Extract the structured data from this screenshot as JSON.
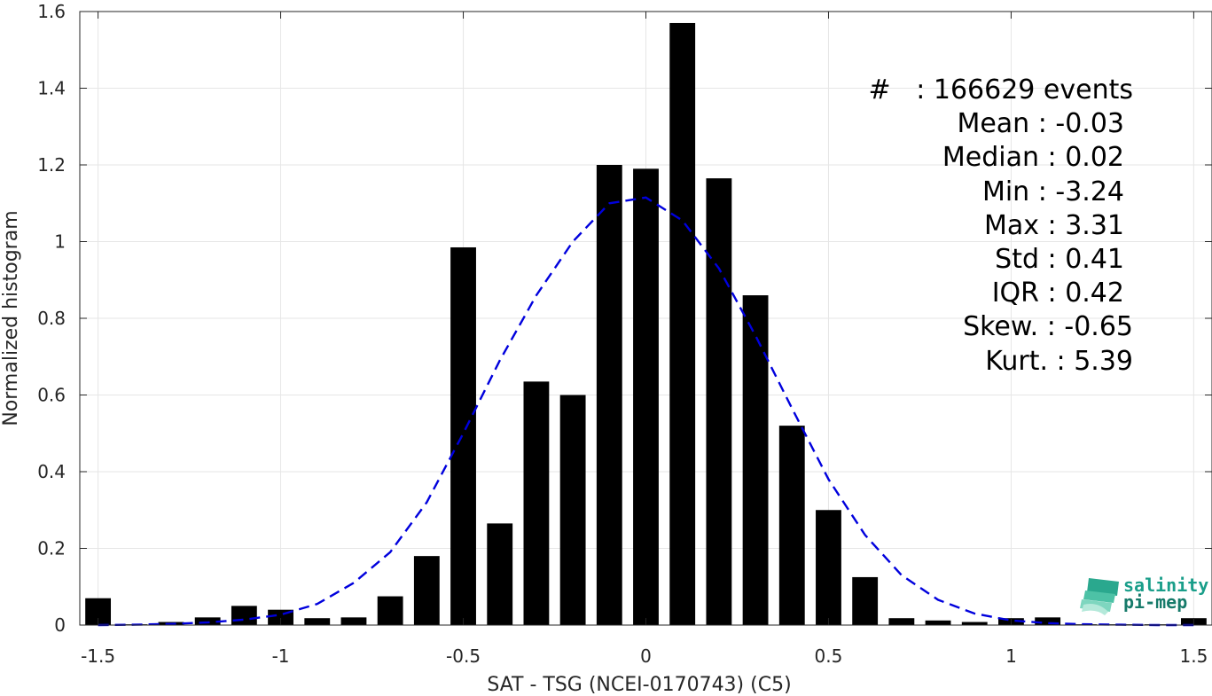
{
  "chart_data": {
    "type": "bar",
    "xlabel": "SAT - TSG (NCEI-0170743) (C5)",
    "ylabel": "Normalized histogram",
    "xlim": [
      -1.55,
      1.55
    ],
    "ylim": [
      0,
      1.6
    ],
    "grid": true,
    "x_ticks": [
      -1.5,
      -1,
      -0.5,
      0,
      0.5,
      1,
      1.5
    ],
    "x_tick_labels": [
      "-1.5",
      "-1",
      "-0.5",
      "0",
      "0.5",
      "1",
      "1.5"
    ],
    "y_ticks": [
      0,
      0.2,
      0.4,
      0.6,
      0.8,
      1,
      1.2,
      1.4,
      1.6
    ],
    "y_tick_labels": [
      "0",
      "0.2",
      "0.4",
      "0.6",
      "0.8",
      "1",
      "1.2",
      "1.4",
      "1.6"
    ],
    "bar_width": 0.07,
    "bar_color": "#000000",
    "bars": {
      "x": [
        -1.5,
        -1.4,
        -1.3,
        -1.2,
        -1.1,
        -1.0,
        -0.9,
        -0.8,
        -0.7,
        -0.6,
        -0.5,
        -0.4,
        -0.3,
        -0.2,
        -0.1,
        0.0,
        0.1,
        0.2,
        0.3,
        0.4,
        0.5,
        0.6,
        0.7,
        0.8,
        0.9,
        1.0,
        1.1,
        1.2,
        1.3,
        1.4,
        1.5
      ],
      "values": [
        0.07,
        0.002,
        0.008,
        0.02,
        0.05,
        0.04,
        0.018,
        0.02,
        0.075,
        0.18,
        0.985,
        0.265,
        0.635,
        0.6,
        1.2,
        1.19,
        1.57,
        1.165,
        0.86,
        0.52,
        0.3,
        0.125,
        0.018,
        0.012,
        0.008,
        0.018,
        0.02,
        0.002,
        0.002,
        0.002,
        0.018
      ]
    },
    "fit_curve": {
      "style": "dashed",
      "color": "#0000dd",
      "x": [
        -1.5,
        -1.4,
        -1.3,
        -1.2,
        -1.1,
        -1.0,
        -0.9,
        -0.8,
        -0.7,
        -0.6,
        -0.5,
        -0.4,
        -0.3,
        -0.2,
        -0.1,
        0.0,
        0.1,
        0.2,
        0.3,
        0.4,
        0.5,
        0.6,
        0.7,
        0.8,
        0.9,
        1.0,
        1.1,
        1.2,
        1.3,
        1.4,
        1.5
      ],
      "y": [
        0.0,
        0.001,
        0.003,
        0.007,
        0.014,
        0.027,
        0.055,
        0.11,
        0.19,
        0.32,
        0.5,
        0.69,
        0.86,
        1.0,
        1.1,
        1.115,
        1.055,
        0.93,
        0.755,
        0.565,
        0.38,
        0.235,
        0.13,
        0.066,
        0.03,
        0.012,
        0.005,
        0.002,
        0.001,
        0.0,
        0.0
      ]
    },
    "annotations": [
      "#   : 166629 events",
      "Mean : -0.03",
      "Median : 0.02",
      "Min : -3.24",
      "Max : 3.31",
      "Std : 0.41",
      "IQR : 0.42",
      "Skew. : -0.65",
      "Kurt. : 5.39"
    ]
  },
  "logo": {
    "line1": "salinity",
    "line2": "pi-mep",
    "colors": {
      "text1": "#1a9e8a",
      "text2": "#167a6a",
      "mark": "#3cbfa3"
    }
  }
}
